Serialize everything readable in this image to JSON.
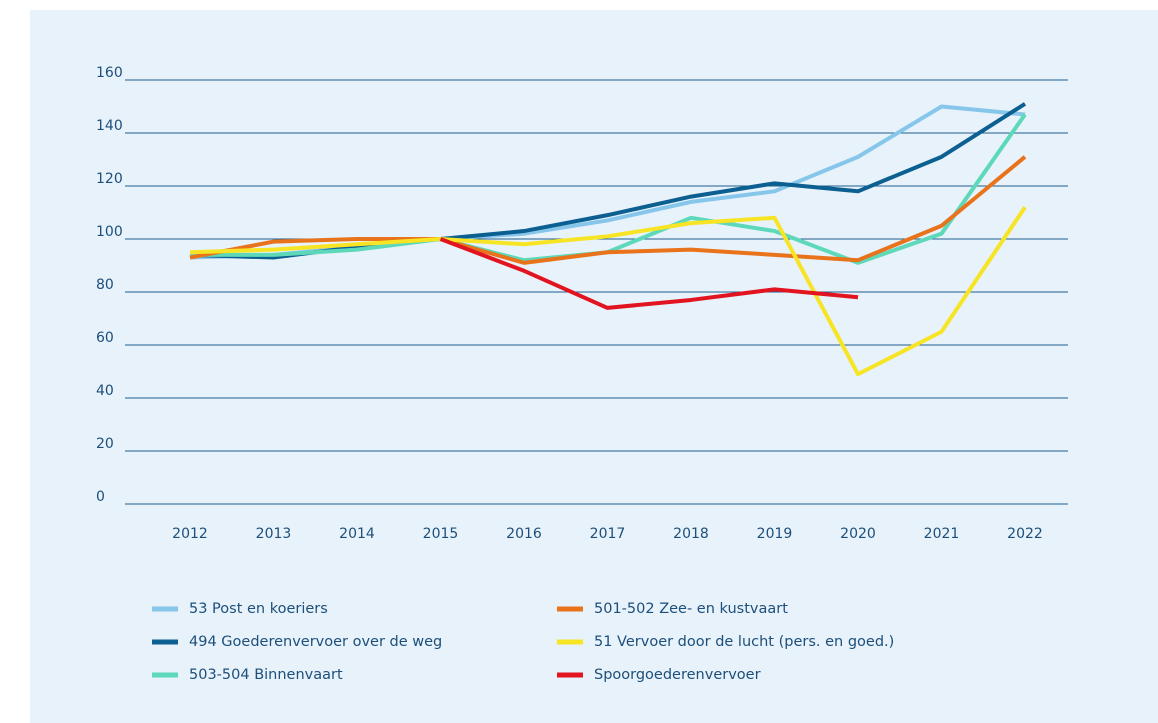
{
  "chart_data": {
    "type": "line",
    "categories": [
      "2012",
      "2013",
      "2014",
      "2015",
      "2016",
      "2017",
      "2018",
      "2019",
      "2020",
      "2021",
      "2022"
    ],
    "ylim": [
      0,
      160
    ],
    "yticks": [
      0,
      20,
      40,
      60,
      80,
      100,
      120,
      140,
      160
    ],
    "grid": true,
    "series": [
      {
        "name": "53 Post en koeriers",
        "color": "#86c6ea",
        "values": [
          93,
          94,
          97,
          100,
          102,
          107,
          114,
          118,
          131,
          150,
          147
        ]
      },
      {
        "name": "494 Goederenvervoer over de weg",
        "color": "#0b5f91",
        "values": [
          94,
          93,
          97,
          100,
          103,
          109,
          116,
          121,
          118,
          131,
          151
        ]
      },
      {
        "name": "503-504 Binnenvaart",
        "color": "#5dd8b8",
        "values": [
          94,
          94,
          96,
          100,
          92,
          95,
          108,
          103,
          91,
          102,
          147
        ]
      },
      {
        "name": "501-502 Zee- en kustvaart",
        "color": "#e8731b",
        "values": [
          93,
          99,
          100,
          100,
          91,
          95,
          96,
          94,
          92,
          105,
          131
        ]
      },
      {
        "name": "51 Vervoer door de lucht (pers. en goed.)",
        "color": "#f7e424",
        "values": [
          95,
          96,
          98,
          100,
          98,
          101,
          106,
          108,
          49,
          65,
          112
        ]
      },
      {
        "name": "Spoorgoederenvervoer",
        "color": "#e1141f",
        "values": [
          null,
          null,
          null,
          100,
          88,
          74,
          77,
          81,
          78,
          null,
          null
        ]
      }
    ]
  }
}
